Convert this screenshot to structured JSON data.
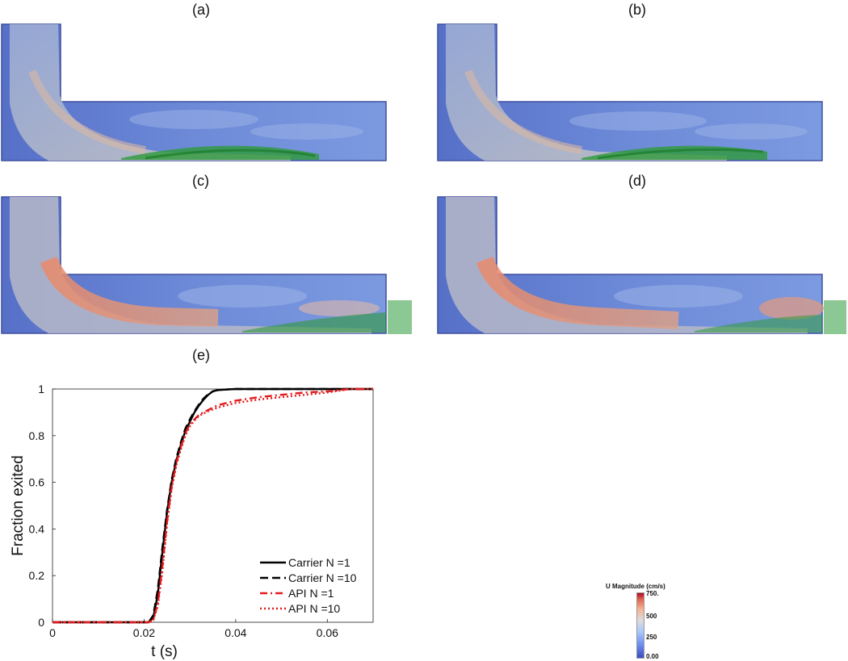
{
  "panels": {
    "a": "(a)",
    "b": "(b)",
    "c": "(c)",
    "d": "(d)",
    "e": "(e)"
  },
  "colorbar": {
    "title": "U Magnitude (cm/s)",
    "ticks": [
      "750.",
      "500",
      "250",
      "0.00"
    ],
    "max": 750,
    "min": 0
  },
  "chart_data": {
    "type": "line",
    "xlabel": "t (s)",
    "ylabel": "Fraction exited",
    "xlim": [
      0,
      0.07
    ],
    "ylim": [
      0,
      1
    ],
    "xticks": [
      "0",
      "0.02",
      "0.04",
      "0.06"
    ],
    "yticks": [
      "0",
      "0.2",
      "0.4",
      "0.6",
      "0.8",
      "1"
    ],
    "grid": false,
    "legend_position": "bottom-right",
    "series": [
      {
        "name": "Carrier   N =1",
        "color": "#000000",
        "style": "solid",
        "x": [
          0,
          0.021,
          0.022,
          0.023,
          0.024,
          0.025,
          0.026,
          0.027,
          0.028,
          0.029,
          0.03,
          0.031,
          0.032,
          0.033,
          0.034,
          0.035,
          0.036,
          0.038,
          0.04,
          0.05,
          0.06,
          0.07
        ],
        "y": [
          0,
          0,
          0.02,
          0.12,
          0.3,
          0.47,
          0.6,
          0.69,
          0.76,
          0.82,
          0.86,
          0.9,
          0.93,
          0.955,
          0.975,
          0.99,
          0.995,
          0.998,
          1.0,
          1.0,
          1.0,
          1.0
        ]
      },
      {
        "name": "Carrier   N =10",
        "color": "#000000",
        "style": "dashed",
        "x": [
          0,
          0.021,
          0.022,
          0.023,
          0.024,
          0.025,
          0.026,
          0.027,
          0.028,
          0.029,
          0.03,
          0.031,
          0.032,
          0.033,
          0.034,
          0.035,
          0.036,
          0.038,
          0.04,
          0.05,
          0.06,
          0.07
        ],
        "y": [
          0,
          0,
          0.03,
          0.14,
          0.32,
          0.48,
          0.61,
          0.7,
          0.77,
          0.83,
          0.87,
          0.905,
          0.935,
          0.96,
          0.978,
          0.99,
          0.995,
          0.998,
          1.0,
          1.0,
          1.0,
          1.0
        ]
      },
      {
        "name": "API   N =1",
        "color": "#e31a1c",
        "style": "dashdot",
        "x": [
          0,
          0.021,
          0.022,
          0.023,
          0.024,
          0.025,
          0.026,
          0.027,
          0.028,
          0.029,
          0.03,
          0.031,
          0.032,
          0.034,
          0.036,
          0.04,
          0.045,
          0.05,
          0.055,
          0.06,
          0.065,
          0.07
        ],
        "y": [
          0,
          0,
          0.01,
          0.08,
          0.24,
          0.43,
          0.58,
          0.68,
          0.75,
          0.81,
          0.85,
          0.87,
          0.89,
          0.91,
          0.93,
          0.95,
          0.965,
          0.975,
          0.985,
          0.99,
          1.0,
          1.0
        ]
      },
      {
        "name": "API   N =10",
        "color": "#e31a1c",
        "style": "dotted",
        "x": [
          0,
          0.021,
          0.022,
          0.023,
          0.024,
          0.025,
          0.026,
          0.027,
          0.028,
          0.029,
          0.03,
          0.031,
          0.032,
          0.034,
          0.036,
          0.04,
          0.045,
          0.05,
          0.055,
          0.06,
          0.065,
          0.07
        ],
        "y": [
          0,
          0,
          0.01,
          0.07,
          0.22,
          0.42,
          0.57,
          0.67,
          0.74,
          0.8,
          0.84,
          0.865,
          0.885,
          0.905,
          0.92,
          0.94,
          0.955,
          0.965,
          0.975,
          0.985,
          1.0,
          1.0
        ]
      }
    ]
  }
}
